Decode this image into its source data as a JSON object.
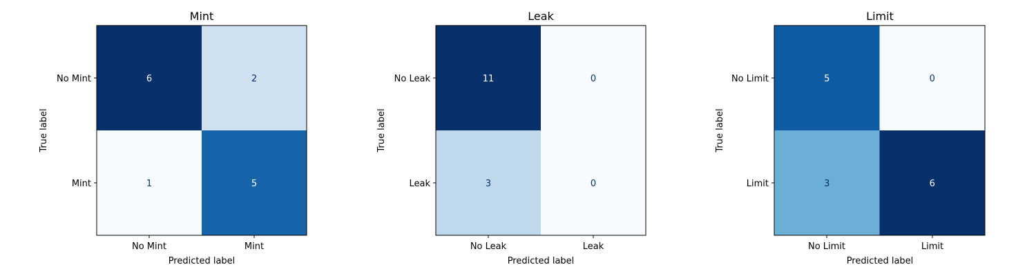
{
  "chart_data": [
    {
      "type": "heatmap",
      "title": "Mint",
      "xlabel": "Predicted label",
      "ylabel": "True label",
      "x_categories": [
        "No Mint",
        "Mint"
      ],
      "y_categories": [
        "No Mint",
        "Mint"
      ],
      "values": [
        [
          6,
          2
        ],
        [
          1,
          5
        ]
      ],
      "colormap": "Blues"
    },
    {
      "type": "heatmap",
      "title": "Leak",
      "xlabel": "Predicted label",
      "ylabel": "True label",
      "x_categories": [
        "No Leak",
        "Leak"
      ],
      "y_categories": [
        "No Leak",
        "Leak"
      ],
      "values": [
        [
          11,
          0
        ],
        [
          3,
          0
        ]
      ],
      "colormap": "Blues"
    },
    {
      "type": "heatmap",
      "title": "Limit",
      "xlabel": "Predicted label",
      "ylabel": "True label",
      "x_categories": [
        "No Limit",
        "Limit"
      ],
      "y_categories": [
        "No Limit",
        "Limit"
      ],
      "values": [
        [
          5,
          0
        ],
        [
          3,
          6
        ]
      ],
      "colormap": "Blues"
    }
  ]
}
